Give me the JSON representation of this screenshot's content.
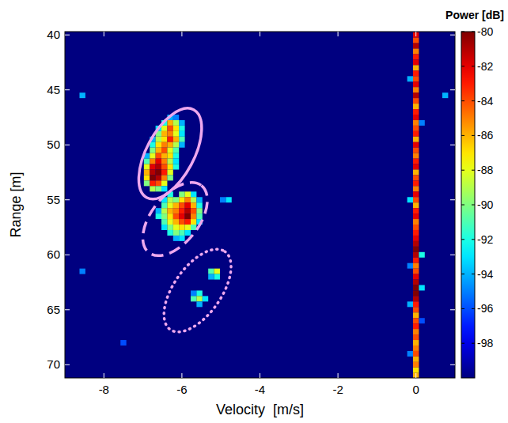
{
  "chart_data": {
    "type": "heatmap",
    "x_label": "Velocity  [m/s]",
    "y_label": "Range [m]",
    "colorbar_label": "Power [dB]",
    "xlim": [
      -9,
      1
    ],
    "ylim": [
      71.2,
      39.7
    ],
    "xticks": [
      -8,
      -6,
      -4,
      -2,
      0
    ],
    "yticks": [
      40,
      45,
      50,
      55,
      60,
      65,
      70
    ],
    "clim": [
      -100,
      -80
    ],
    "cticks": [
      -80,
      -82,
      -84,
      -86,
      -88,
      -90,
      -92,
      -94,
      -96,
      -98
    ],
    "grid": false,
    "cells": [
      [
        0,
        40,
        -82
      ],
      [
        0,
        40.5,
        -84
      ],
      [
        0,
        41,
        -81
      ],
      [
        0,
        41.5,
        -85
      ],
      [
        0,
        42,
        -83
      ],
      [
        0,
        42.5,
        -82
      ],
      [
        0,
        43,
        -86
      ],
      [
        0,
        43.5,
        -83
      ],
      [
        0,
        44,
        -84
      ],
      [
        0,
        44.5,
        -82
      ],
      [
        0,
        45,
        -85
      ],
      [
        0,
        45.5,
        -81
      ],
      [
        0,
        46,
        -84
      ],
      [
        0,
        46.5,
        -86
      ],
      [
        0,
        47,
        -83
      ],
      [
        0,
        47.5,
        -82
      ],
      [
        0,
        48,
        -85
      ],
      [
        0,
        48.5,
        -84
      ],
      [
        0,
        49,
        -83
      ],
      [
        0,
        49.5,
        -86
      ],
      [
        0,
        50,
        -82
      ],
      [
        0,
        50.5,
        -84
      ],
      [
        0,
        51,
        -85
      ],
      [
        0,
        51.5,
        -83
      ],
      [
        0,
        52,
        -82
      ],
      [
        0,
        52.5,
        -86
      ],
      [
        0,
        53,
        -84
      ],
      [
        0,
        53.5,
        -83
      ],
      [
        0,
        54,
        -85
      ],
      [
        0,
        54.5,
        -82
      ],
      [
        0,
        55,
        -84
      ],
      [
        0,
        55.5,
        -86
      ],
      [
        0,
        56,
        -83
      ],
      [
        0,
        56.5,
        -82
      ],
      [
        0,
        57,
        -85
      ],
      [
        0,
        57.5,
        -84
      ],
      [
        0,
        58,
        -83
      ],
      [
        0,
        58.5,
        -82
      ],
      [
        0,
        59,
        -81
      ],
      [
        0,
        59.5,
        -80
      ],
      [
        0,
        60,
        -81
      ],
      [
        0,
        60.5,
        -83
      ],
      [
        0,
        61,
        -85
      ],
      [
        0,
        61.5,
        -84
      ],
      [
        0,
        62,
        -82
      ],
      [
        0,
        62.5,
        -81
      ],
      [
        0,
        63,
        -80
      ],
      [
        0,
        63.5,
        -80
      ],
      [
        0,
        64,
        -81
      ],
      [
        0,
        64.5,
        -83
      ],
      [
        0,
        65,
        -84
      ],
      [
        0,
        65.5,
        -86
      ],
      [
        0,
        66,
        -84
      ],
      [
        0,
        66.5,
        -83
      ],
      [
        0,
        67,
        -85
      ],
      [
        0,
        67.5,
        -84
      ],
      [
        0,
        68,
        -86
      ],
      [
        0,
        68.5,
        -85
      ],
      [
        0,
        69,
        -84
      ],
      [
        0,
        69.5,
        -86
      ],
      [
        0,
        70,
        -85
      ],
      [
        0,
        70.5,
        -87
      ],
      [
        0,
        71,
        -86
      ],
      [
        -0.15,
        44,
        -94
      ],
      [
        0.15,
        48,
        -95
      ],
      [
        -0.15,
        55,
        -93
      ],
      [
        0.15,
        60,
        -92
      ],
      [
        -0.15,
        61,
        -95
      ],
      [
        0.15,
        63,
        -93
      ],
      [
        -0.15,
        64.5,
        -94
      ],
      [
        0.15,
        66,
        -96
      ],
      [
        -0.15,
        69,
        -95
      ],
      [
        -6.3,
        47.5,
        -94
      ],
      [
        -6.15,
        47.5,
        -95
      ],
      [
        -6.45,
        48,
        -92
      ],
      [
        -6.3,
        48,
        -86
      ],
      [
        -6.15,
        48,
        -89
      ],
      [
        -6.0,
        48,
        -94
      ],
      [
        -6.6,
        48.5,
        -93
      ],
      [
        -6.45,
        48.5,
        -88
      ],
      [
        -6.3,
        48.5,
        -84
      ],
      [
        -6.15,
        48.5,
        -87
      ],
      [
        -6.0,
        48.5,
        -92
      ],
      [
        -6.6,
        49,
        -90
      ],
      [
        -6.45,
        49,
        -86
      ],
      [
        -6.3,
        49,
        -85
      ],
      [
        -6.15,
        49,
        -88
      ],
      [
        -6.0,
        49,
        -93
      ],
      [
        -6.75,
        49.5,
        -94
      ],
      [
        -6.6,
        49.5,
        -89
      ],
      [
        -6.45,
        49.5,
        -87
      ],
      [
        -6.3,
        49.5,
        -83
      ],
      [
        -6.15,
        49.5,
        -86
      ],
      [
        -6.0,
        49.5,
        -91
      ],
      [
        -6.75,
        50,
        -92
      ],
      [
        -6.6,
        50,
        -87
      ],
      [
        -6.45,
        50,
        -85
      ],
      [
        -6.3,
        50,
        -86
      ],
      [
        -6.15,
        50,
        -89
      ],
      [
        -6.0,
        50,
        -94
      ],
      [
        -6.75,
        50.5,
        -90
      ],
      [
        -6.6,
        50.5,
        -86
      ],
      [
        -6.45,
        50.5,
        -84
      ],
      [
        -6.3,
        50.5,
        -88
      ],
      [
        -6.15,
        50.5,
        -91
      ],
      [
        -6.9,
        51,
        -94
      ],
      [
        -6.75,
        51,
        -88
      ],
      [
        -6.6,
        51,
        -84
      ],
      [
        -6.45,
        51,
        -86
      ],
      [
        -6.3,
        51,
        -87
      ],
      [
        -6.15,
        51,
        -92
      ],
      [
        -6.9,
        51.5,
        -91
      ],
      [
        -6.75,
        51.5,
        -85
      ],
      [
        -6.6,
        51.5,
        -82
      ],
      [
        -6.45,
        51.5,
        -85
      ],
      [
        -6.3,
        51.5,
        -89
      ],
      [
        -6.15,
        51.5,
        -93
      ],
      [
        -6.9,
        52,
        -88
      ],
      [
        -6.75,
        52,
        -82
      ],
      [
        -6.6,
        52,
        -81
      ],
      [
        -6.45,
        52,
        -84
      ],
      [
        -6.3,
        52,
        -87
      ],
      [
        -6.15,
        52,
        -92
      ],
      [
        -6.9,
        52.5,
        -86
      ],
      [
        -6.75,
        52.5,
        -81
      ],
      [
        -6.6,
        52.5,
        -80
      ],
      [
        -6.45,
        52.5,
        -83
      ],
      [
        -6.3,
        52.5,
        -88
      ],
      [
        -6.9,
        53,
        -87
      ],
      [
        -6.75,
        53,
        -80
      ],
      [
        -6.6,
        53,
        -81
      ],
      [
        -6.45,
        53,
        -85
      ],
      [
        -6.3,
        53,
        -90
      ],
      [
        -6.9,
        53.5,
        -90
      ],
      [
        -6.75,
        53.5,
        -83
      ],
      [
        -6.6,
        53.5,
        -84
      ],
      [
        -6.45,
        53.5,
        -88
      ],
      [
        -6.75,
        54,
        -89
      ],
      [
        -6.6,
        54,
        -90
      ],
      [
        -6.45,
        54,
        -93
      ],
      [
        -6.3,
        54.5,
        -92
      ],
      [
        -6.0,
        54.5,
        -90
      ],
      [
        -5.85,
        54.5,
        -88
      ],
      [
        -5.7,
        54.5,
        -93
      ],
      [
        -6.45,
        55,
        -93
      ],
      [
        -6.3,
        55,
        -89
      ],
      [
        -6.15,
        55,
        -90
      ],
      [
        -6.0,
        55,
        -87
      ],
      [
        -5.85,
        55,
        -85
      ],
      [
        -5.7,
        55,
        -89
      ],
      [
        -5.55,
        55,
        -94
      ],
      [
        -6.45,
        55.5,
        -91
      ],
      [
        -6.3,
        55.5,
        -88
      ],
      [
        -6.15,
        55.5,
        -86
      ],
      [
        -6.0,
        55.5,
        -84
      ],
      [
        -5.85,
        55.5,
        -82
      ],
      [
        -5.7,
        55.5,
        -86
      ],
      [
        -5.55,
        55.5,
        -92
      ],
      [
        -6.6,
        56,
        -94
      ],
      [
        -6.45,
        56,
        -89
      ],
      [
        -6.3,
        56,
        -86
      ],
      [
        -6.15,
        56,
        -85
      ],
      [
        -6.0,
        56,
        -83
      ],
      [
        -5.85,
        56,
        -81
      ],
      [
        -5.7,
        56,
        -84
      ],
      [
        -5.55,
        56,
        -90
      ],
      [
        -6.6,
        56.5,
        -92
      ],
      [
        -6.45,
        56.5,
        -90
      ],
      [
        -6.3,
        56.5,
        -87
      ],
      [
        -6.15,
        56.5,
        -84
      ],
      [
        -6.0,
        56.5,
        -82
      ],
      [
        -5.85,
        56.5,
        -80
      ],
      [
        -5.7,
        56.5,
        -85
      ],
      [
        -5.55,
        56.5,
        -91
      ],
      [
        -6.45,
        57,
        -91
      ],
      [
        -6.3,
        57,
        -88
      ],
      [
        -6.15,
        57,
        -86
      ],
      [
        -6.0,
        57,
        -84
      ],
      [
        -5.85,
        57,
        -83
      ],
      [
        -5.7,
        57,
        -87
      ],
      [
        -5.55,
        57,
        -93
      ],
      [
        -6.45,
        57.5,
        -93
      ],
      [
        -6.3,
        57.5,
        -90
      ],
      [
        -6.15,
        57.5,
        -88
      ],
      [
        -6.0,
        57.5,
        -87
      ],
      [
        -5.85,
        57.5,
        -88
      ],
      [
        -5.7,
        57.5,
        -91
      ],
      [
        -6.3,
        58,
        -92
      ],
      [
        -6.15,
        58,
        -90
      ],
      [
        -6.0,
        58,
        -91
      ],
      [
        -5.85,
        58,
        -93
      ],
      [
        -6.15,
        58.5,
        -94
      ],
      [
        -6.0,
        58.5,
        -93
      ],
      [
        -4.8,
        55,
        -93
      ],
      [
        -4.95,
        55,
        -95
      ],
      [
        -5.25,
        61.5,
        -91
      ],
      [
        -5.1,
        61.5,
        -88
      ],
      [
        -5.1,
        62,
        -92
      ],
      [
        -5.25,
        62,
        -94
      ],
      [
        -5.7,
        63.5,
        -95
      ],
      [
        -5.55,
        63.5,
        -92
      ],
      [
        -5.7,
        64,
        -91
      ],
      [
        -5.55,
        64,
        -89
      ],
      [
        -5.4,
        64,
        -93
      ],
      [
        -5.55,
        64.5,
        -94
      ],
      [
        -8.55,
        45.5,
        -94
      ],
      [
        0.75,
        45.5,
        -94
      ],
      [
        -8.55,
        61.5,
        -95
      ],
      [
        -7.5,
        68,
        -96
      ]
    ],
    "ellipses": [
      {
        "x": [
          -6.9,
          -5.7
        ],
        "y": [
          54.8,
          46.8
        ],
        "line_style": "solid",
        "color": "#eea8ee"
      },
      {
        "x": [
          -6.85,
          -5.5
        ],
        "y": [
          59.8,
          53.7
        ],
        "line_style": "dashed",
        "color": "#eea8ee"
      },
      {
        "x": [
          -6.3,
          -4.9
        ],
        "y": [
          66.8,
          59.7
        ],
        "line_style": "dotted",
        "color": "#eea8ee"
      }
    ]
  }
}
